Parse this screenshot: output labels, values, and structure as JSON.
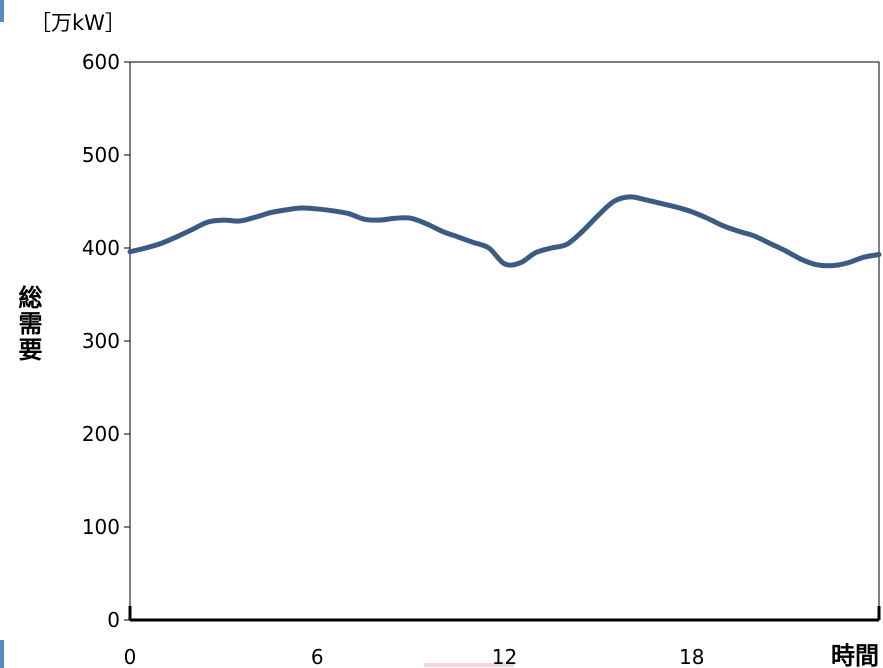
{
  "chart_data": {
    "type": "line",
    "unit_label": "［万kW］",
    "ylabel": "総需要",
    "xlabel": "時間",
    "x_ticks": [
      0,
      6,
      12,
      18
    ],
    "y_ticks": [
      0,
      100,
      200,
      300,
      400,
      500,
      600
    ],
    "xlim": [
      0,
      24
    ],
    "ylim": [
      0,
      600
    ],
    "grid": false,
    "series": [
      {
        "color": "#3b5b85",
        "x": [
          0,
          0.5,
          1,
          1.5,
          2,
          2.5,
          3,
          3.5,
          4,
          4.5,
          5,
          5.5,
          6,
          6.5,
          7,
          7.5,
          8,
          8.5,
          9,
          9.5,
          10,
          10.5,
          11,
          11.5,
          12,
          12.5,
          13,
          13.5,
          14,
          14.5,
          15,
          15.5,
          16,
          16.5,
          17,
          17.5,
          18,
          18.5,
          19,
          19.5,
          20,
          20.5,
          21,
          21.5,
          22,
          22.5,
          23,
          23.5,
          24
        ],
        "y": [
          396,
          400,
          405,
          412,
          420,
          428,
          430,
          429,
          433,
          438,
          441,
          443,
          442,
          440,
          437,
          431,
          430,
          432,
          432,
          426,
          418,
          412,
          406,
          400,
          383,
          384,
          395,
          400,
          404,
          418,
          435,
          450,
          455,
          452,
          448,
          444,
          439,
          432,
          424,
          418,
          413,
          405,
          397,
          388,
          382,
          381,
          384,
          390,
          393
        ]
      }
    ]
  }
}
